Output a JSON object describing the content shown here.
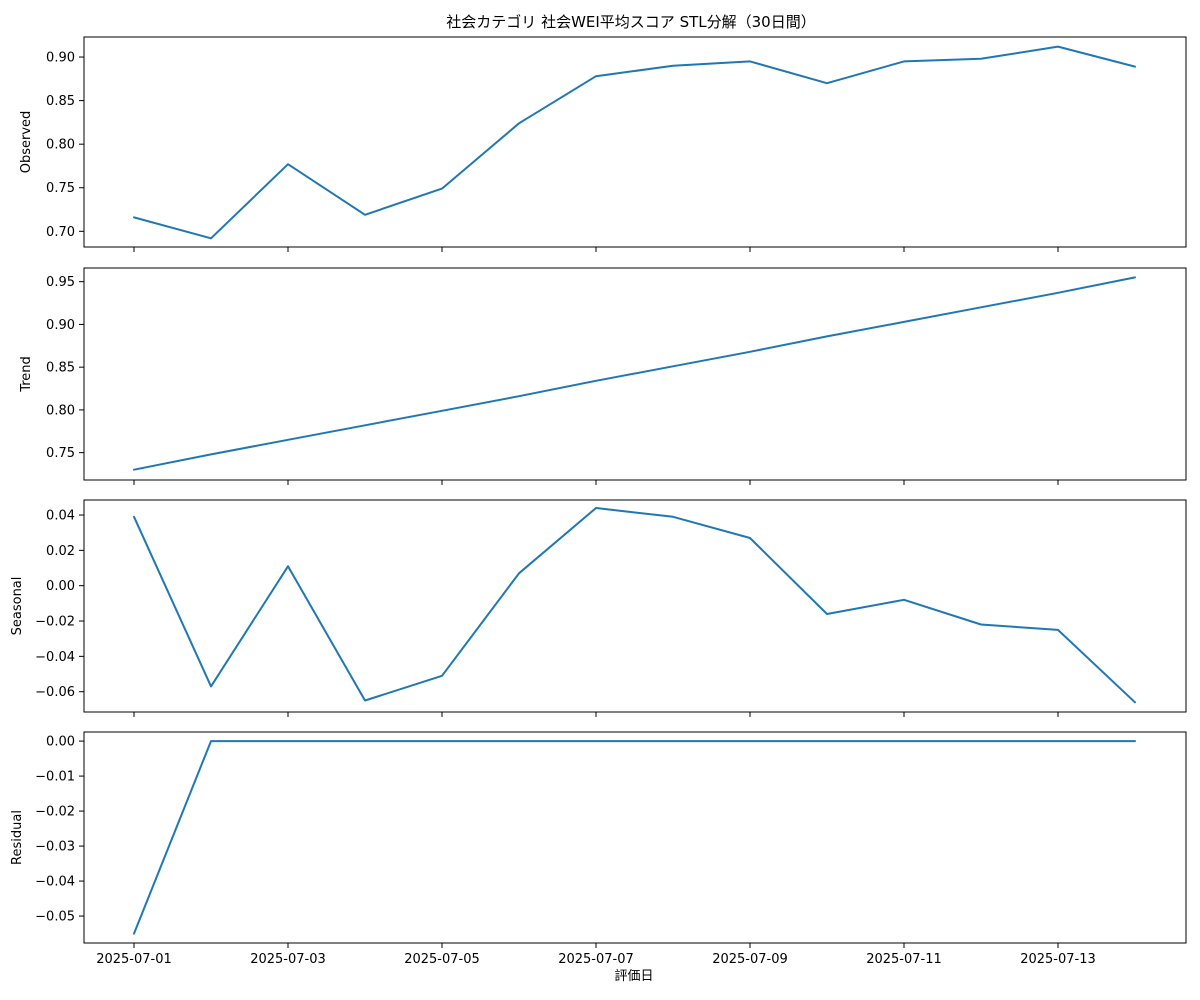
{
  "chart_data": {
    "type": "line",
    "title": "社会カテゴリ 社会WEI平均スコア STL分解（30日間）",
    "xlabel": "評価日",
    "x": [
      "2025-07-01",
      "2025-07-02",
      "2025-07-03",
      "2025-07-04",
      "2025-07-05",
      "2025-07-06",
      "2025-07-07",
      "2025-07-08",
      "2025-07-09",
      "2025-07-10",
      "2025-07-11",
      "2025-07-12",
      "2025-07-13",
      "2025-07-14"
    ],
    "x_tick_labels": [
      "2025-07-01",
      "2025-07-03",
      "2025-07-05",
      "2025-07-07",
      "2025-07-09",
      "2025-07-11",
      "2025-07-13"
    ],
    "line_color": "#1f77b4",
    "grid": false,
    "panels": [
      {
        "ylabel": "Observed",
        "ylim": [
          0.682,
          0.923
        ],
        "yticks": [
          0.7,
          0.75,
          0.8,
          0.85,
          0.9
        ],
        "ytick_labels": [
          "0.70",
          "0.75",
          "0.80",
          "0.85",
          "0.90"
        ],
        "values": [
          0.716,
          0.692,
          0.777,
          0.719,
          0.749,
          0.824,
          0.878,
          0.89,
          0.895,
          0.87,
          0.895,
          0.898,
          0.912,
          0.889
        ]
      },
      {
        "ylabel": "Trend",
        "ylim": [
          0.718,
          0.966
        ],
        "yticks": [
          0.75,
          0.8,
          0.85,
          0.9,
          0.95
        ],
        "ytick_labels": [
          "0.75",
          "0.80",
          "0.85",
          "0.90",
          "0.95"
        ],
        "values": [
          0.73,
          0.748,
          0.765,
          0.782,
          0.799,
          0.816,
          0.834,
          0.851,
          0.868,
          0.886,
          0.903,
          0.92,
          0.937,
          0.955
        ]
      },
      {
        "ylabel": "Seasonal",
        "ylim": [
          -0.0715,
          0.0485
        ],
        "yticks": [
          0.04,
          0.02,
          0.0,
          -0.02,
          -0.04,
          -0.06
        ],
        "ytick_labels": [
          "0.04",
          "0.02",
          "0.00",
          "−0.02",
          "−0.04",
          "−0.06"
        ],
        "values": [
          0.039,
          -0.057,
          0.011,
          -0.065,
          -0.051,
          0.007,
          0.044,
          0.039,
          0.027,
          -0.016,
          -0.008,
          -0.022,
          -0.025,
          -0.066
        ]
      },
      {
        "ylabel": "Residual",
        "ylim": [
          -0.0577,
          0.0026
        ],
        "yticks": [
          0.0,
          -0.01,
          -0.02,
          -0.03,
          -0.04,
          -0.05
        ],
        "ytick_labels": [
          "0.00",
          "−0.01",
          "−0.02",
          "−0.03",
          "−0.04",
          "−0.05"
        ],
        "values": [
          -0.055,
          0.0,
          0.0,
          0.0,
          0.0,
          0.0,
          0.0,
          0.0,
          0.0,
          0.0,
          0.0,
          0.0,
          0.0,
          0.0
        ]
      }
    ]
  }
}
